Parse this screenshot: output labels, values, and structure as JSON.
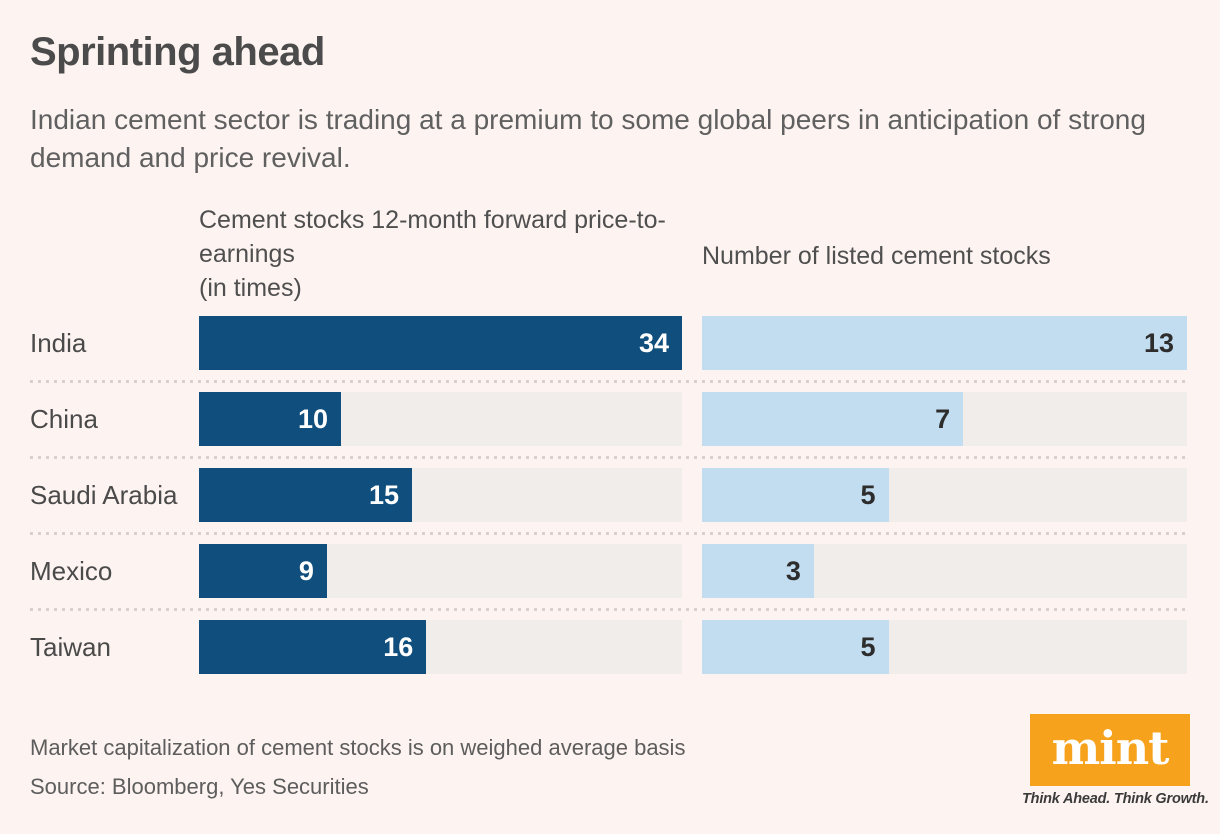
{
  "title": "Sprinting ahead",
  "subtitle": "Indian cement sector is trading at a premium to some global peers in anticipation of strong demand and price revival.",
  "chart_data": {
    "type": "bar",
    "orientation": "horizontal",
    "grid": false,
    "categories": [
      "India",
      "China",
      "Saudi Arabia",
      "Mexico",
      "Taiwan"
    ],
    "series": [
      {
        "name": "Cement stocks 12-month forward price-to-earnings",
        "unit": "(in times)",
        "values": [
          34,
          10,
          15,
          9,
          16
        ],
        "axis_max": 34,
        "bar_color": "#0f4e7d",
        "value_label_color": "#ffffff"
      },
      {
        "name": "Number of listed cement stocks",
        "unit": "",
        "values": [
          13,
          7,
          5,
          3,
          5
        ],
        "axis_max": 13,
        "bar_color": "#c2ddef",
        "value_label_color": "#2d2d2d"
      }
    ],
    "track_color": "#f1edea",
    "value_labels": "inside-end"
  },
  "footnote": "Market capitalization of cement stocks is on weighed average basis",
  "source": "Source: Bloomberg, Yes Securities",
  "logo": {
    "text": "mint",
    "tagline": "Think Ahead. Think Growth.",
    "bg_color": "#f6a21d"
  },
  "colors": {
    "background": "#fdf4f1",
    "dark_bar": "#0f4e7d",
    "light_bar": "#c2ddef",
    "bar_track": "#f1edea",
    "separator_dots": "#d7d1ce",
    "title_text": "#4b4b4b",
    "body_text": "#5d5d5d"
  }
}
